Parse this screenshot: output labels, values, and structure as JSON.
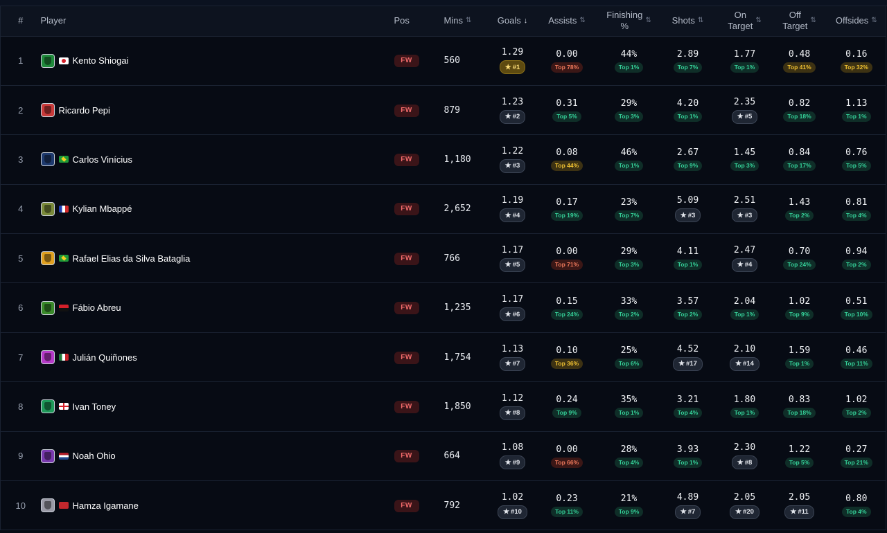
{
  "headers": {
    "rank": "#",
    "player": "Player",
    "pos": "Pos",
    "mins": "Mins",
    "goals": "Goals",
    "assists": "Assists",
    "finishing_1": "Finishing",
    "finishing_2": "%",
    "shots": "Shots",
    "on_target_1": "On",
    "on_target_2": "Target",
    "off_target_1": "Off",
    "off_target_2": "Target",
    "offsides": "Offsides",
    "sort_icon": "⇅",
    "sort_desc_icon": "↓"
  },
  "colors": {
    "green": "#35d39a",
    "yellow": "#f1c232",
    "red": "#f07a5c",
    "gold": "#f1c232",
    "position": "#f06a6a"
  },
  "rows": [
    {
      "rank": "1",
      "name": "Kento Shiogai",
      "crest": "#1f8a3b",
      "flag": "japan",
      "pos": "FW",
      "mins": "560",
      "goals": {
        "value": "1.29",
        "badge": "#1",
        "kind": "rank-gold"
      },
      "assists": {
        "value": "0.00",
        "badge": "Top 78%",
        "kind": "red"
      },
      "finishing": {
        "value": "44%",
        "badge": "Top 1%",
        "kind": "green"
      },
      "shots": {
        "value": "2.89",
        "badge": "Top 7%",
        "kind": "green"
      },
      "on_target": {
        "value": "1.77",
        "badge": "Top 1%",
        "kind": "green"
      },
      "off_target": {
        "value": "0.48",
        "badge": "Top 41%",
        "kind": "yellow"
      },
      "offsides": {
        "value": "0.16",
        "badge": "Top 32%",
        "kind": "yellow"
      }
    },
    {
      "rank": "2",
      "name": "Ricardo Pepi",
      "crest": "#c93a3a",
      "flag": "",
      "pos": "FW",
      "mins": "879",
      "goals": {
        "value": "1.23",
        "badge": "#2",
        "kind": "rank"
      },
      "assists": {
        "value": "0.31",
        "badge": "Top 5%",
        "kind": "green"
      },
      "finishing": {
        "value": "29%",
        "badge": "Top 3%",
        "kind": "green"
      },
      "shots": {
        "value": "4.20",
        "badge": "Top 1%",
        "kind": "green"
      },
      "on_target": {
        "value": "2.35",
        "badge": "#5",
        "kind": "rank"
      },
      "off_target": {
        "value": "0.82",
        "badge": "Top 18%",
        "kind": "green"
      },
      "offsides": {
        "value": "1.13",
        "badge": "Top 1%",
        "kind": "green"
      }
    },
    {
      "rank": "3",
      "name": "Carlos Vinícius",
      "crest": "#1e3a6e",
      "flag": "brazil",
      "pos": "FW",
      "mins": "1,180",
      "goals": {
        "value": "1.22",
        "badge": "#3",
        "kind": "rank"
      },
      "assists": {
        "value": "0.08",
        "badge": "Top 44%",
        "kind": "yellow"
      },
      "finishing": {
        "value": "46%",
        "badge": "Top 1%",
        "kind": "green"
      },
      "shots": {
        "value": "2.67",
        "badge": "Top 9%",
        "kind": "green"
      },
      "on_target": {
        "value": "1.45",
        "badge": "Top 3%",
        "kind": "green"
      },
      "off_target": {
        "value": "0.84",
        "badge": "Top 17%",
        "kind": "green"
      },
      "offsides": {
        "value": "0.76",
        "badge": "Top 5%",
        "kind": "green"
      }
    },
    {
      "rank": "4",
      "name": "Kylian Mbappé",
      "crest": "#7a8a3a",
      "flag": "france",
      "pos": "FW",
      "mins": "2,652",
      "goals": {
        "value": "1.19",
        "badge": "#4",
        "kind": "rank"
      },
      "assists": {
        "value": "0.17",
        "badge": "Top 19%",
        "kind": "green"
      },
      "finishing": {
        "value": "23%",
        "badge": "Top 7%",
        "kind": "green"
      },
      "shots": {
        "value": "5.09",
        "badge": "#3",
        "kind": "rank"
      },
      "on_target": {
        "value": "2.51",
        "badge": "#3",
        "kind": "rank"
      },
      "off_target": {
        "value": "1.43",
        "badge": "Top 2%",
        "kind": "green"
      },
      "offsides": {
        "value": "0.81",
        "badge": "Top 4%",
        "kind": "green"
      }
    },
    {
      "rank": "5",
      "name": "Rafael Elias da Silva Bataglia",
      "crest": "#e0a020",
      "flag": "brazil",
      "pos": "FW",
      "mins": "766",
      "goals": {
        "value": "1.17",
        "badge": "#5",
        "kind": "rank"
      },
      "assists": {
        "value": "0.00",
        "badge": "Top 71%",
        "kind": "red"
      },
      "finishing": {
        "value": "29%",
        "badge": "Top 3%",
        "kind": "green"
      },
      "shots": {
        "value": "4.11",
        "badge": "Top 1%",
        "kind": "green"
      },
      "on_target": {
        "value": "2.47",
        "badge": "#4",
        "kind": "rank"
      },
      "off_target": {
        "value": "0.70",
        "badge": "Top 24%",
        "kind": "green"
      },
      "offsides": {
        "value": "0.94",
        "badge": "Top 2%",
        "kind": "green"
      }
    },
    {
      "rank": "6",
      "name": "Fábio Abreu",
      "crest": "#3a8a2a",
      "flag": "angola",
      "pos": "FW",
      "mins": "1,235",
      "goals": {
        "value": "1.17",
        "badge": "#6",
        "kind": "rank"
      },
      "assists": {
        "value": "0.15",
        "badge": "Top 24%",
        "kind": "green"
      },
      "finishing": {
        "value": "33%",
        "badge": "Top 2%",
        "kind": "green"
      },
      "shots": {
        "value": "3.57",
        "badge": "Top 2%",
        "kind": "green"
      },
      "on_target": {
        "value": "2.04",
        "badge": "Top 1%",
        "kind": "green"
      },
      "off_target": {
        "value": "1.02",
        "badge": "Top 9%",
        "kind": "green"
      },
      "offsides": {
        "value": "0.51",
        "badge": "Top 10%",
        "kind": "green"
      }
    },
    {
      "rank": "7",
      "name": "Julián Quiñones",
      "crest": "#b63ac9",
      "flag": "mexico",
      "pos": "FW",
      "mins": "1,754",
      "goals": {
        "value": "1.13",
        "badge": "#7",
        "kind": "rank"
      },
      "assists": {
        "value": "0.10",
        "badge": "Top 36%",
        "kind": "yellow"
      },
      "finishing": {
        "value": "25%",
        "badge": "Top 6%",
        "kind": "green"
      },
      "shots": {
        "value": "4.52",
        "badge": "#17",
        "kind": "rank"
      },
      "on_target": {
        "value": "2.10",
        "badge": "#14",
        "kind": "rank"
      },
      "off_target": {
        "value": "1.59",
        "badge": "Top 1%",
        "kind": "green"
      },
      "offsides": {
        "value": "0.46",
        "badge": "Top 11%",
        "kind": "green"
      }
    },
    {
      "rank": "8",
      "name": "Ivan Toney",
      "crest": "#1f9a5a",
      "flag": "england",
      "pos": "FW",
      "mins": "1,850",
      "goals": {
        "value": "1.12",
        "badge": "#8",
        "kind": "rank"
      },
      "assists": {
        "value": "0.24",
        "badge": "Top 9%",
        "kind": "green"
      },
      "finishing": {
        "value": "35%",
        "badge": "Top 1%",
        "kind": "green"
      },
      "shots": {
        "value": "3.21",
        "badge": "Top 4%",
        "kind": "green"
      },
      "on_target": {
        "value": "1.80",
        "badge": "Top 1%",
        "kind": "green"
      },
      "off_target": {
        "value": "0.83",
        "badge": "Top 18%",
        "kind": "green"
      },
      "offsides": {
        "value": "1.02",
        "badge": "Top 2%",
        "kind": "green"
      }
    },
    {
      "rank": "9",
      "name": "Noah Ohio",
      "crest": "#7a3ab0",
      "flag": "netherlands",
      "pos": "FW",
      "mins": "664",
      "goals": {
        "value": "1.08",
        "badge": "#9",
        "kind": "rank"
      },
      "assists": {
        "value": "0.00",
        "badge": "Top 66%",
        "kind": "red"
      },
      "finishing": {
        "value": "28%",
        "badge": "Top 4%",
        "kind": "green"
      },
      "shots": {
        "value": "3.93",
        "badge": "Top 1%",
        "kind": "green"
      },
      "on_target": {
        "value": "2.30",
        "badge": "#8",
        "kind": "rank"
      },
      "off_target": {
        "value": "1.22",
        "badge": "Top 5%",
        "kind": "green"
      },
      "offsides": {
        "value": "0.27",
        "badge": "Top 21%",
        "kind": "green"
      }
    },
    {
      "rank": "10",
      "name": "Hamza Igamane",
      "crest": "#9a9aa6",
      "flag": "morocco",
      "pos": "FW",
      "mins": "792",
      "goals": {
        "value": "1.02",
        "badge": "#10",
        "kind": "rank"
      },
      "assists": {
        "value": "0.23",
        "badge": "Top 11%",
        "kind": "green"
      },
      "finishing": {
        "value": "21%",
        "badge": "Top 9%",
        "kind": "green"
      },
      "shots": {
        "value": "4.89",
        "badge": "#7",
        "kind": "rank"
      },
      "on_target": {
        "value": "2.05",
        "badge": "#20",
        "kind": "rank"
      },
      "off_target": {
        "value": "2.05",
        "badge": "#11",
        "kind": "rank"
      },
      "offsides": {
        "value": "0.80",
        "badge": "Top 4%",
        "kind": "green"
      }
    }
  ]
}
